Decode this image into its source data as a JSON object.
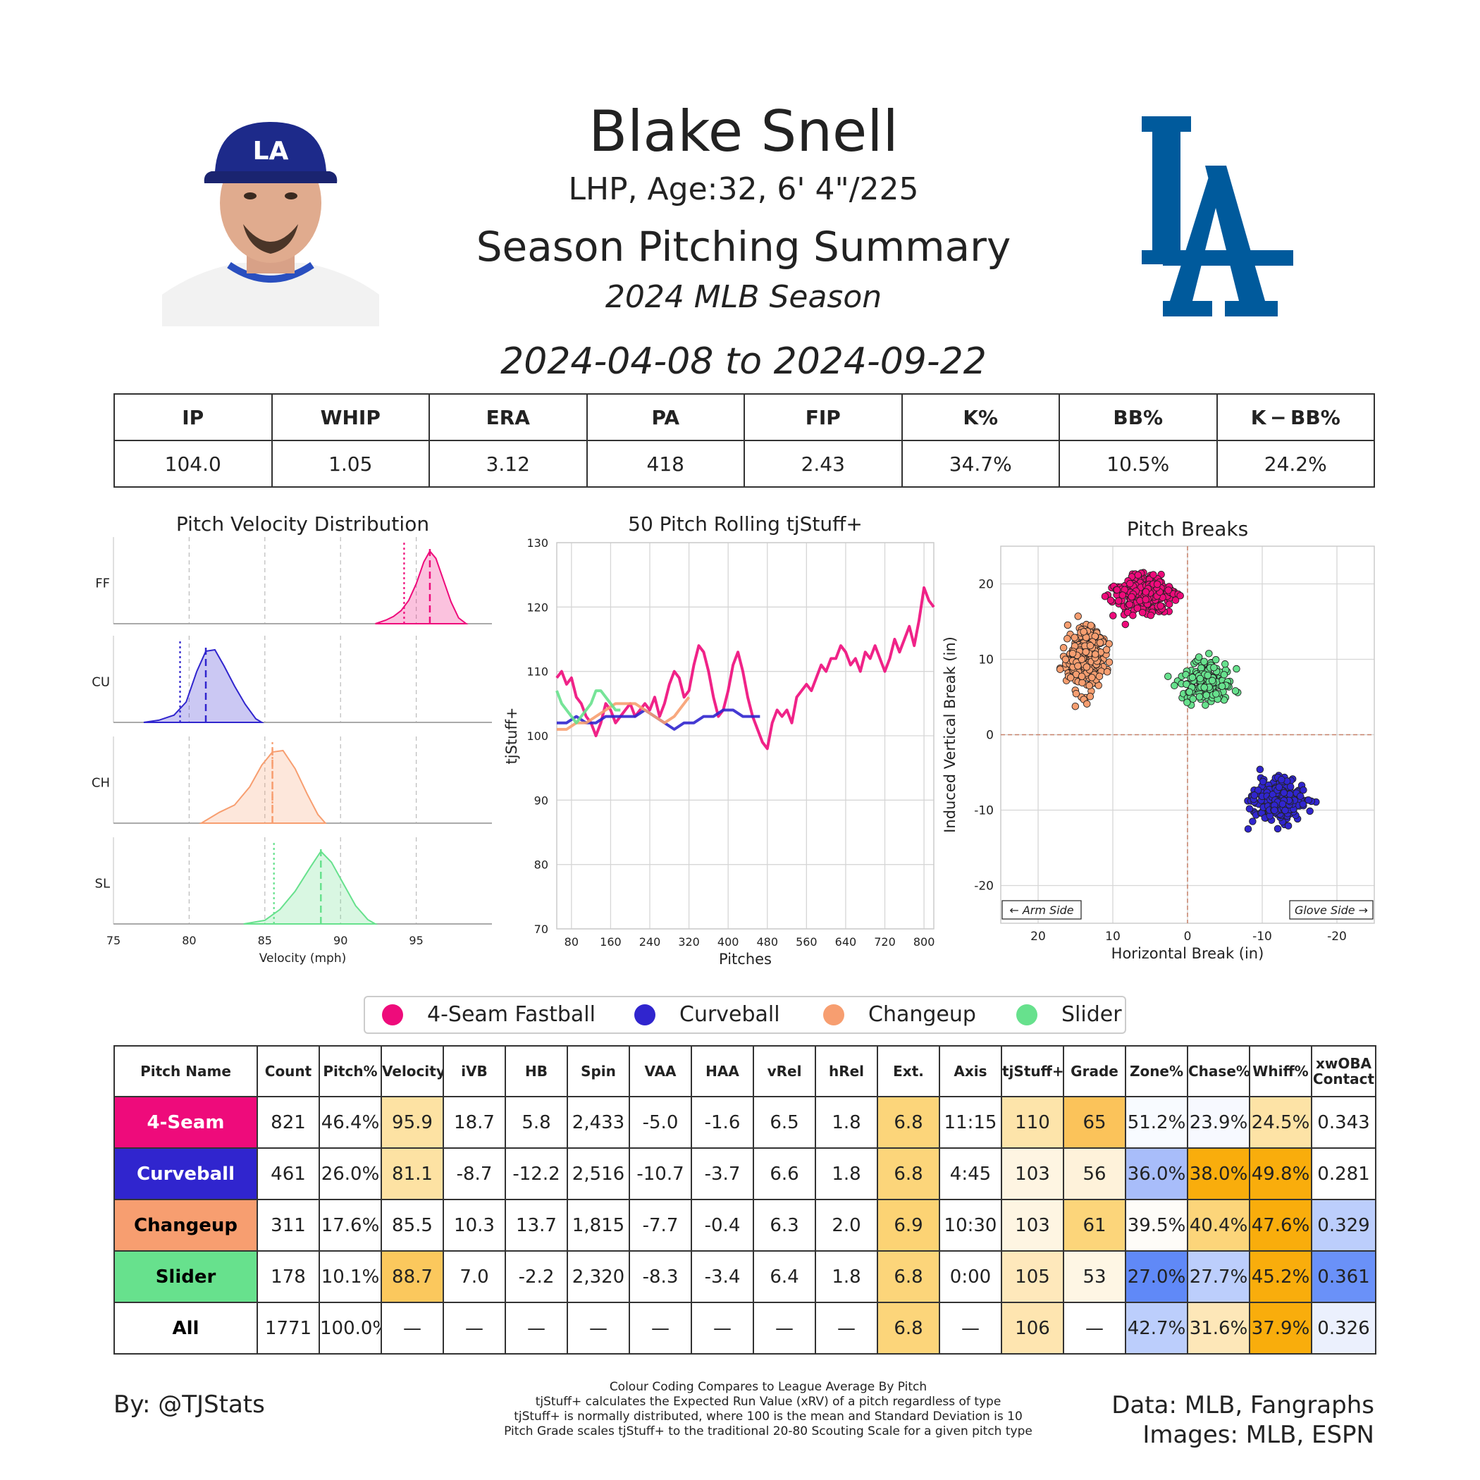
{
  "header": {
    "name": "Blake Snell",
    "info": "LHP, Age:32, 6' 4\"/225",
    "title": "Season Pitching Summary",
    "season": "2024 MLB Season",
    "dates": "2024-04-08 to 2024-09-22",
    "logo_text": "LA"
  },
  "season_stats": {
    "headers": [
      "IP",
      "WHIP",
      "ERA",
      "PA",
      "FIP",
      "K%",
      "BB%",
      "K − BB%"
    ],
    "values": [
      "104.0",
      "1.05",
      "3.12",
      "418",
      "2.43",
      "34.7%",
      "10.5%",
      "24.2%"
    ]
  },
  "pitch_colors": {
    "4-Seam Fastball": "#ee0b7b",
    "Curveball": "#3025ce",
    "Changeup": "#f79e70",
    "Slider": "#67e18d"
  },
  "legend": [
    "4-Seam Fastball",
    "Curveball",
    "Changeup",
    "Slider"
  ],
  "pitch_table": {
    "headers": [
      "Pitch Name",
      "Count",
      "Pitch%",
      "Velocity",
      "iVB",
      "HB",
      "Spin",
      "VAA",
      "HAA",
      "vRel",
      "hRel",
      "Ext.",
      "Axis",
      "tjStuff+",
      "Grade",
      "Zone%",
      "Chase%",
      "Whiff%",
      "xwOBA\nContact"
    ],
    "rows": [
      {
        "name": "4-Seam",
        "bg": "#ee0b7b",
        "fg": "#ffffff",
        "cells": [
          "821",
          "46.4%",
          "95.9",
          "18.7",
          "5.8",
          "2,433",
          "-5.0",
          "-1.6",
          "6.5",
          "1.8",
          "6.8",
          "11:15",
          "110",
          "65",
          "51.2%",
          "23.9%",
          "24.5%",
          "0.343"
        ],
        "shades": [
          "",
          "",
          "#fde2a3",
          "",
          "",
          "",
          "",
          "",
          "",
          "",
          "#fcd57a",
          "",
          "#fde4aa",
          "#fbc35a",
          "#f8fbff",
          "#f7f9ff",
          "#fde3a6",
          ""
        ]
      },
      {
        "name": "Curveball",
        "bg": "#3025ce",
        "fg": "#ffffff",
        "cells": [
          "461",
          "26.0%",
          "81.1",
          "-8.7",
          "-12.2",
          "2,516",
          "-10.7",
          "-3.7",
          "6.6",
          "1.8",
          "6.8",
          "4:45",
          "103",
          "56",
          "36.0%",
          "38.0%",
          "49.8%",
          "0.281"
        ],
        "shades": [
          "",
          "",
          "#fde2a3",
          "",
          "",
          "",
          "",
          "",
          "",
          "",
          "#fcd57a",
          "",
          "#fef5e2",
          "#fef2da",
          "#a8bdfa",
          "#f9ad0c",
          "#f9ad0c",
          ""
        ]
      },
      {
        "name": "Changeup",
        "bg": "#f79e70",
        "fg": "#000000",
        "cells": [
          "311",
          "17.6%",
          "85.5",
          "10.3",
          "13.7",
          "1,815",
          "-7.7",
          "-0.4",
          "6.3",
          "2.0",
          "6.9",
          "10:30",
          "103",
          "61",
          "39.5%",
          "40.4%",
          "47.6%",
          "0.329"
        ],
        "shades": [
          "",
          "",
          "",
          "",
          "",
          "",
          "",
          "",
          "",
          "",
          "#fcd374",
          "",
          "#fef5e2",
          "#fcd57a",
          "#fefcf8",
          "#fcd57a",
          "#f9ad0c",
          "#bccefc"
        ]
      },
      {
        "name": "Slider",
        "bg": "#67e18d",
        "fg": "#000000",
        "cells": [
          "178",
          "10.1%",
          "88.7",
          "7.0",
          "-2.2",
          "2,320",
          "-8.3",
          "-3.4",
          "6.4",
          "1.8",
          "6.8",
          "0:00",
          "105",
          "53",
          "27.0%",
          "27.7%",
          "45.2%",
          "0.361"
        ],
        "shades": [
          "",
          "",
          "#fbc85d",
          "",
          "",
          "",
          "",
          "",
          "",
          "",
          "#fcd57a",
          "",
          "#fee8bb",
          "#fef6e4",
          "#6089f7",
          "#bccefc",
          "#f9ad0c",
          "#6a91f8"
        ]
      },
      {
        "name": "All",
        "bg": "#ffffff",
        "fg": "#000000",
        "cells": [
          "1771",
          "100.0%",
          "—",
          "—",
          "—",
          "—",
          "—",
          "—",
          "—",
          "—",
          "6.8",
          "—",
          "106",
          "—",
          "42.7%",
          "31.6%",
          "37.9%",
          "0.326"
        ],
        "shades": [
          "",
          "",
          "",
          "",
          "",
          "",
          "",
          "",
          "",
          "",
          "#fcd57a",
          "",
          "#fee5b0",
          "",
          "#bccefc",
          "#fde7b8",
          "#f9ad0c",
          "#ebf0fd"
        ]
      }
    ]
  },
  "footer": {
    "byline": "By: @TJStats",
    "data_credit": "Data: MLB, Fangraphs",
    "image_credit": "Images: MLB, ESPN",
    "notes": [
      "Colour Coding Compares to League Average By Pitch",
      "tjStuff+ calculates the Expected Run Value (xRV) of a pitch regardless of type",
      "tjStuff+ is normally distributed, where 100 is the mean and Standard Deviation is 10",
      "Pitch Grade scales tjStuff+ to the traditional 20-80 Scouting Scale for a given pitch type"
    ]
  },
  "chart_data": [
    {
      "type": "area",
      "title": "Pitch Velocity Distribution",
      "xlabel": "Velocity (mph)",
      "xlim": [
        75,
        100
      ],
      "xticks": [
        75,
        80,
        85,
        90,
        95
      ],
      "grid": true,
      "series": [
        {
          "name": "FF",
          "pitch": "4-Seam Fastball",
          "mean": 95.9,
          "league_mean": 94.2,
          "x": [
            92.3,
            93.0,
            93.5,
            94.0,
            94.5,
            95.0,
            95.5,
            95.9,
            96.3,
            96.8,
            97.3,
            97.8,
            98.3
          ],
          "density": [
            0.0,
            0.05,
            0.1,
            0.18,
            0.32,
            0.55,
            0.85,
            1.0,
            0.9,
            0.6,
            0.3,
            0.08,
            0.0
          ]
        },
        {
          "name": "CU",
          "pitch": "Curveball",
          "mean": 81.1,
          "league_mean": 79.4,
          "x": [
            77.0,
            78.0,
            79.0,
            79.8,
            80.5,
            81.1,
            81.7,
            82.3,
            83.0,
            83.7,
            84.4,
            84.8
          ],
          "density": [
            0.0,
            0.03,
            0.1,
            0.28,
            0.7,
            0.98,
            1.0,
            0.78,
            0.5,
            0.25,
            0.05,
            0.0
          ]
        },
        {
          "name": "CH",
          "pitch": "Changeup",
          "mean": 85.5,
          "league_mean": 85.5,
          "x": [
            80.8,
            82.0,
            83.0,
            84.0,
            84.8,
            85.5,
            86.2,
            87.0,
            87.8,
            88.5,
            89.0
          ],
          "density": [
            0.0,
            0.15,
            0.25,
            0.5,
            0.8,
            0.98,
            1.0,
            0.75,
            0.4,
            0.12,
            0.0
          ]
        },
        {
          "name": "SL",
          "pitch": "Slider",
          "mean": 88.7,
          "league_mean": 85.6,
          "x": [
            83.6,
            85.0,
            86.0,
            87.0,
            88.0,
            88.7,
            89.4,
            90.2,
            91.0,
            91.8,
            92.3
          ],
          "density": [
            0.0,
            0.05,
            0.2,
            0.45,
            0.78,
            1.0,
            0.85,
            0.55,
            0.25,
            0.06,
            0.0
          ]
        }
      ]
    },
    {
      "type": "line",
      "title": "50 Pitch Rolling tjStuff+",
      "xlabel": "Pitches",
      "ylabel": "tjStuff+",
      "xlim": [
        50,
        820
      ],
      "ylim": [
        70,
        130
      ],
      "xticks": [
        80,
        160,
        240,
        320,
        400,
        480,
        560,
        640,
        720,
        800
      ],
      "yticks": [
        70,
        80,
        90,
        100,
        110,
        120,
        130
      ],
      "series": [
        {
          "name": "4-Seam Fastball",
          "x": [
            50,
            60,
            70,
            80,
            90,
            100,
            110,
            120,
            130,
            140,
            150,
            160,
            170,
            180,
            190,
            200,
            210,
            220,
            230,
            240,
            250,
            260,
            270,
            280,
            290,
            300,
            310,
            320,
            330,
            340,
            350,
            360,
            370,
            380,
            390,
            400,
            410,
            420,
            430,
            440,
            450,
            460,
            470,
            480,
            490,
            500,
            510,
            520,
            530,
            540,
            550,
            560,
            570,
            580,
            590,
            600,
            610,
            620,
            630,
            640,
            650,
            660,
            670,
            680,
            690,
            700,
            710,
            720,
            730,
            740,
            750,
            760,
            770,
            780,
            790,
            800,
            810,
            820
          ],
          "y": [
            109,
            110,
            108,
            109,
            106,
            105,
            103,
            102,
            100,
            102,
            105,
            104,
            102,
            103,
            104,
            105,
            103,
            104,
            105,
            104,
            106,
            103,
            105,
            108,
            110,
            109,
            106,
            107,
            111,
            114,
            113,
            110,
            106,
            103,
            104,
            107,
            111,
            113,
            110,
            106,
            103,
            101,
            99,
            98,
            102,
            104,
            103,
            104,
            102,
            106,
            107,
            108,
            107,
            109,
            111,
            110,
            112,
            112,
            114,
            113,
            111,
            112,
            110,
            113,
            112,
            114,
            112,
            110,
            112,
            115,
            113,
            115,
            117,
            114,
            118,
            123,
            121,
            120
          ]
        },
        {
          "name": "Curveball",
          "x": [
            50,
            70,
            90,
            110,
            130,
            150,
            170,
            190,
            210,
            230,
            250,
            270,
            290,
            310,
            330,
            350,
            370,
            390,
            410,
            430,
            450,
            465
          ],
          "y": [
            102,
            102,
            103,
            102,
            102,
            103,
            103,
            103,
            103,
            104,
            103,
            102,
            101,
            102,
            102,
            103,
            103,
            104,
            104,
            103,
            103,
            103
          ]
        },
        {
          "name": "Changeup",
          "x": [
            50,
            70,
            90,
            110,
            130,
            150,
            170,
            190,
            210,
            230,
            250,
            270,
            290,
            310,
            320
          ],
          "y": [
            101,
            101,
            102,
            102,
            103,
            104,
            105,
            105,
            105,
            104,
            103,
            102,
            103,
            105,
            106
          ]
        },
        {
          "name": "Slider",
          "x": [
            50,
            60,
            70,
            80,
            90,
            100,
            110,
            120,
            130,
            140,
            150,
            160,
            170,
            180
          ],
          "y": [
            107,
            105,
            104,
            103,
            102,
            103,
            104,
            105,
            107,
            107,
            106,
            105,
            104,
            104
          ]
        }
      ]
    },
    {
      "type": "scatter",
      "title": "Pitch Breaks",
      "xlabel": "Horizontal Break (in)",
      "ylabel": "Induced Vertical Break (in)",
      "xlim": [
        25,
        -25
      ],
      "ylim": [
        -25,
        25
      ],
      "xticks": [
        20,
        10,
        0,
        -10,
        -20
      ],
      "yticks": [
        20,
        10,
        0,
        -10,
        -20
      ],
      "annotations": [
        "← Arm Side",
        "Glove Side →"
      ],
      "series": [
        {
          "name": "4-Seam Fastball",
          "n": 821,
          "center": [
            5.8,
            18.7
          ],
          "spread": [
            2.6,
            1.6
          ]
        },
        {
          "name": "Curveball",
          "n": 461,
          "center": [
            -12.2,
            -8.7
          ],
          "spread": [
            2.4,
            2.0
          ]
        },
        {
          "name": "Changeup",
          "n": 311,
          "center": [
            13.7,
            10.3
          ],
          "spread": [
            1.8,
            3.0
          ]
        },
        {
          "name": "Slider",
          "n": 178,
          "center": [
            -2.2,
            7.0
          ],
          "spread": [
            2.3,
            1.9
          ]
        }
      ]
    }
  ]
}
